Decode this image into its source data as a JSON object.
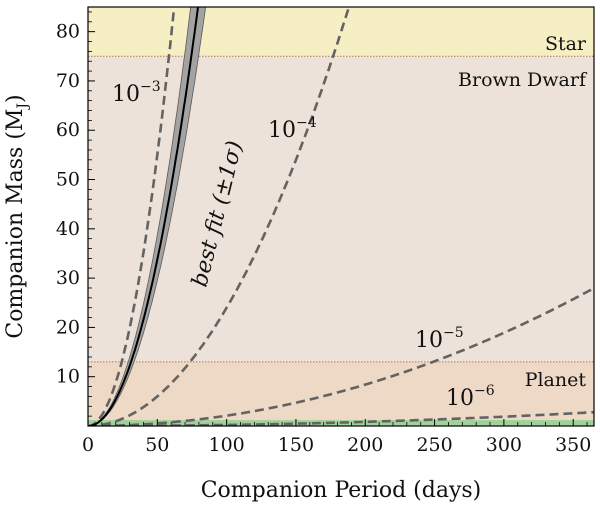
{
  "chart_data": {
    "type": "line",
    "xlabel": "Companion Period (days)",
    "ylabel": {
      "main": "Companion Mass (M",
      "sub": "J",
      "close": ")"
    },
    "xlim": [
      0,
      365
    ],
    "ylim": [
      0,
      85
    ],
    "xticks": [
      0,
      50,
      100,
      150,
      200,
      250,
      300,
      350
    ],
    "yticks": [
      10,
      20,
      30,
      40,
      50,
      60,
      70,
      80
    ],
    "grid": false,
    "regions": [
      {
        "label": "Star",
        "ymin": 75,
        "ymax": 85,
        "color": "#f7efc4"
      },
      {
        "label": "Brown Dwarf",
        "ymin": 13,
        "ymax": 75,
        "color": "#ede2d9"
      },
      {
        "label": "Planet",
        "ymin": 0,
        "ymax": 13,
        "color": "#eed9c7"
      }
    ],
    "boundary_lines": [
      13,
      75
    ],
    "reference_curves": [
      {
        "base": "10",
        "exp": "−3",
        "coefficient": 0.022,
        "power": 2
      },
      {
        "base": "10",
        "exp": "−4",
        "coefficient": 0.0024,
        "power": 2
      },
      {
        "base": "10",
        "exp": "−5",
        "coefficient": 0.00021,
        "power": 2
      },
      {
        "base": "10",
        "exp": "−6",
        "coefficient": 2.1e-05,
        "power": 2
      }
    ],
    "best_fit": {
      "label": "best fit (±1σ)",
      "coefficient": 0.0135,
      "power": 2,
      "band_low_coefficient": 0.0118,
      "band_high_coefficient": 0.0155
    },
    "bottom_band_color": "#9fd29a"
  }
}
